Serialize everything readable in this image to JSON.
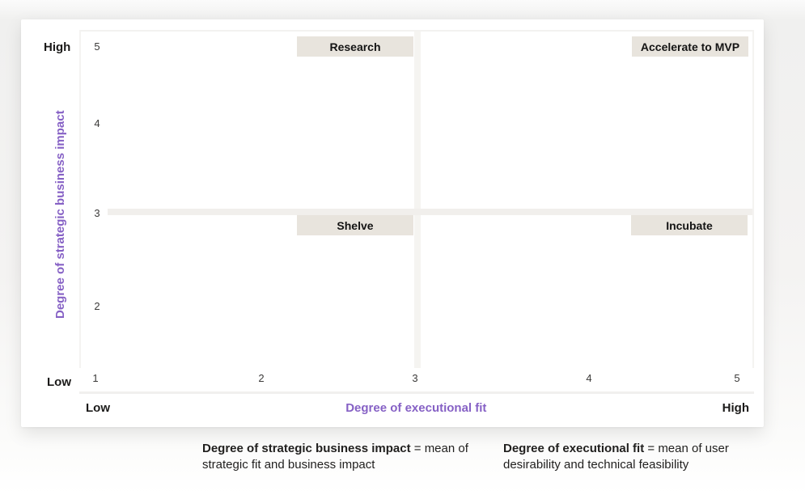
{
  "chart_data": {
    "type": "scatter",
    "title": "",
    "points": [],
    "x_axis": {
      "title": "Degree of executional fit",
      "range": [
        1,
        5
      ],
      "ticks": [
        "1",
        "2",
        "3",
        "4",
        "5"
      ],
      "low_label": "Low",
      "high_label": "High",
      "title_color": "#8661c5"
    },
    "y_axis": {
      "title": "Degree of strategic business impact",
      "range": [
        1,
        5
      ],
      "ticks_displayed": [
        "5",
        "4",
        "3",
        "2"
      ],
      "low_label": "Low",
      "high_label": "High",
      "title_color": "#8661c5"
    },
    "gridlines": false,
    "legend": "none",
    "quadrant_split_value": 3,
    "quadrants": [
      {
        "label": "Research",
        "position": "top-left"
      },
      {
        "label": "Accelerate to MVP",
        "position": "top-right"
      },
      {
        "label": "Shelve",
        "position": "bottom-left"
      },
      {
        "label": "Incubate",
        "position": "bottom-right"
      }
    ]
  },
  "footnotes": [
    {
      "term": "Degree of strategic business impact",
      "definition": " = mean of strategic fit and business impact"
    },
    {
      "term": "Degree of executional fit",
      "definition": " = mean of user desirability and technical feasibility"
    }
  ],
  "colors": {
    "axis_title_purple": "#8661c5",
    "quadrant_label_bg": "#e8e4dd",
    "card_bg": "#ffffff",
    "text_dark": "#1b1a19"
  }
}
